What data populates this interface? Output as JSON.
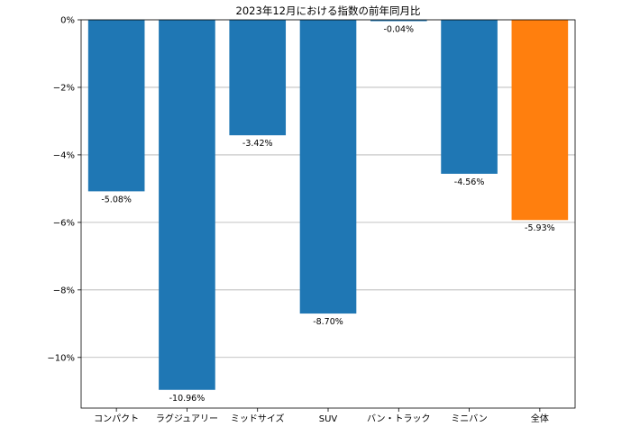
{
  "chart_data": {
    "type": "bar",
    "title": "2023年12月における指数の前年同月比",
    "xlabel": "",
    "ylabel": "",
    "categories": [
      "コンパクト",
      "ラグジュアリー",
      "ミッドサイズ",
      "SUV",
      "バン・トラック",
      "ミニバン",
      "全体"
    ],
    "values": [
      -5.08,
      -10.96,
      -3.42,
      -8.7,
      -0.04,
      -4.56,
      -5.93
    ],
    "value_labels": [
      "-5.08%",
      "-10.96%",
      "-3.42%",
      "-8.70%",
      "-0.04%",
      "-4.56%",
      "-5.93%"
    ],
    "bar_colors": [
      "#1f77b4",
      "#1f77b4",
      "#1f77b4",
      "#1f77b4",
      "#1f77b4",
      "#1f77b4",
      "#ff7f0e"
    ],
    "ylim": [
      -11.5,
      0
    ],
    "yticks": [
      0,
      -2,
      -4,
      -6,
      -8,
      -10
    ],
    "ytick_labels": [
      "0%",
      "−2%",
      "−4%",
      "−6%",
      "−8%",
      "−10%"
    ],
    "grid": "y-major",
    "legend": "none"
  }
}
